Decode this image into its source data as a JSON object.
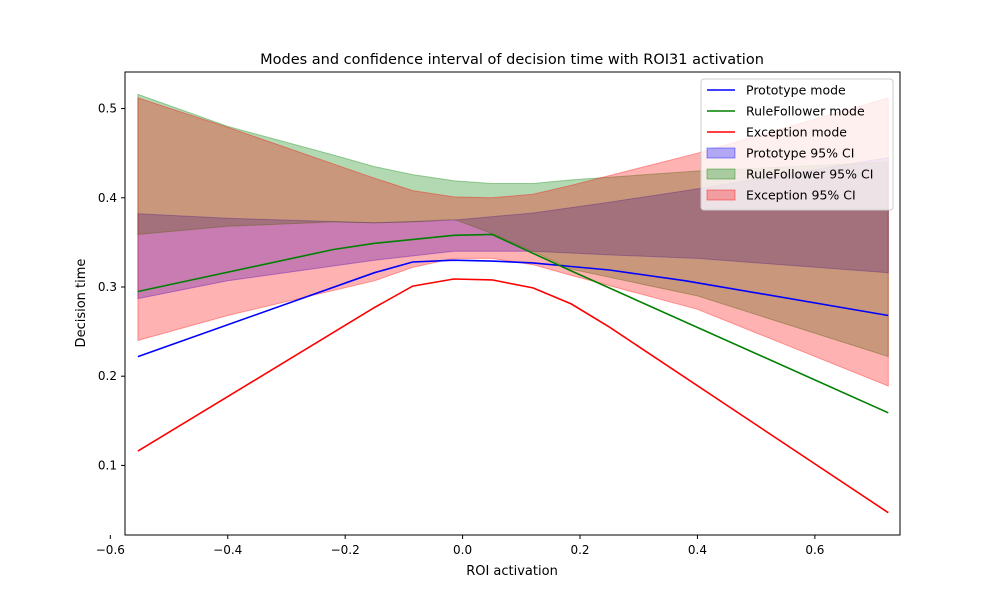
{
  "chart_data": {
    "type": "line",
    "title": "Modes and confidence interval of decision time with ROI31 activation",
    "xlabel": "ROI activation",
    "ylabel": "Decision time",
    "xlim": [
      -0.575,
      0.745
    ],
    "ylim": [
      0.022,
      0.541
    ],
    "xticks": [
      -0.6,
      -0.4,
      -0.2,
      0.0,
      0.2,
      0.4,
      0.6
    ],
    "xtick_labels": [
      "−0.6",
      "−0.4",
      "−0.2",
      "0.0",
      "0.2",
      "0.4",
      "0.6"
    ],
    "yticks": [
      0.1,
      0.2,
      0.3,
      0.4,
      0.5
    ],
    "ytick_labels": [
      "0.1",
      "0.2",
      "0.3",
      "0.4",
      "0.5"
    ],
    "grid": false,
    "legend_position": "top-right",
    "lines": [
      {
        "name": "Prototype mode",
        "color": "#0000ff",
        "x": [
          -0.553,
          -0.15,
          -0.085,
          -0.015,
          0.05,
          0.12,
          0.185,
          0.25,
          0.38,
          0.725
        ],
        "y": [
          0.222,
          0.316,
          0.328,
          0.33,
          0.329,
          0.327,
          0.323,
          0.319,
          0.307,
          0.268
        ]
      },
      {
        "name": "RuleFollower mode",
        "color": "#008000",
        "x": [
          -0.553,
          -0.22,
          -0.15,
          -0.015,
          0.05,
          0.185,
          0.725
        ],
        "y": [
          0.295,
          0.342,
          0.349,
          0.358,
          0.359,
          0.318,
          0.159
        ]
      },
      {
        "name": "Exception mode",
        "color": "#ff0000",
        "x": [
          -0.553,
          -0.15,
          -0.085,
          -0.015,
          0.05,
          0.12,
          0.185,
          0.25,
          0.725
        ],
        "y": [
          0.116,
          0.277,
          0.301,
          0.309,
          0.308,
          0.299,
          0.281,
          0.255,
          0.047
        ]
      }
    ],
    "bands": [
      {
        "name": "Prototype 95% CI",
        "color": "#0000ff",
        "opacity": 0.3,
        "x": [
          -0.553,
          -0.4,
          -0.15,
          -0.015,
          0.12,
          0.25,
          0.4,
          0.725
        ],
        "upper": [
          0.382,
          0.377,
          0.372,
          0.375,
          0.383,
          0.395,
          0.41,
          0.445
        ],
        "lower": [
          0.287,
          0.307,
          0.33,
          0.34,
          0.34,
          0.336,
          0.332,
          0.316
        ]
      },
      {
        "name": "RuleFollower 95% CI",
        "color": "#008000",
        "opacity": 0.3,
        "x": [
          -0.553,
          -0.4,
          -0.22,
          -0.15,
          -0.085,
          -0.015,
          0.05,
          0.12,
          0.185,
          0.4,
          0.725
        ],
        "upper": [
          0.516,
          0.48,
          0.448,
          0.435,
          0.426,
          0.419,
          0.416,
          0.416,
          0.42,
          0.43,
          0.44
        ],
        "lower": [
          0.359,
          0.368,
          0.373,
          0.372,
          0.373,
          0.376,
          0.36,
          0.34,
          0.32,
          0.29,
          0.222
        ]
      },
      {
        "name": "Exception 95% CI",
        "color": "#ff0000",
        "opacity": 0.3,
        "x": [
          -0.553,
          -0.4,
          -0.15,
          -0.085,
          -0.015,
          0.05,
          0.12,
          0.185,
          0.4,
          0.725
        ],
        "upper": [
          0.512,
          0.479,
          0.422,
          0.408,
          0.401,
          0.4,
          0.404,
          0.414,
          0.45,
          0.512
        ],
        "lower": [
          0.24,
          0.268,
          0.307,
          0.322,
          0.332,
          0.332,
          0.325,
          0.313,
          0.275,
          0.189
        ]
      }
    ]
  }
}
